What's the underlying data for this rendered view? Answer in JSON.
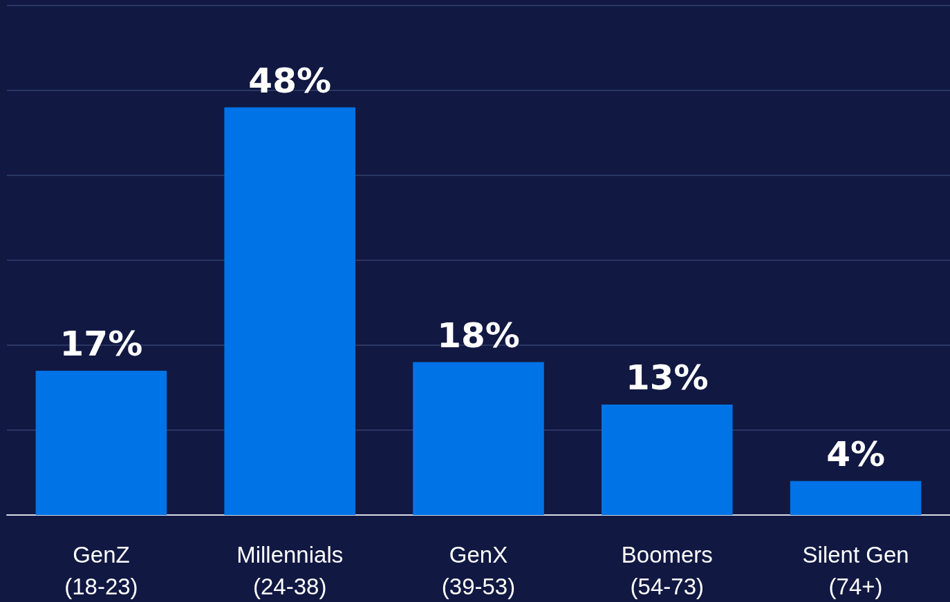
{
  "chart_data": {
    "type": "bar",
    "categories": [
      "GenZ\n(18-23)",
      "Millennials\n(24-38)",
      "GenX\n(39-53)",
      "Boomers\n(54-73)",
      "Silent Gen\n(74+)"
    ],
    "values": [
      17,
      48,
      18,
      13,
      4
    ],
    "value_labels": [
      "17%",
      "48%",
      "18%",
      "13%",
      "4%"
    ],
    "color": "#0073e6",
    "ylim": [
      0,
      60
    ],
    "yticks": [
      0,
      10,
      20,
      30,
      40,
      50,
      60
    ],
    "grid": "y",
    "tick_labels": "x"
  }
}
